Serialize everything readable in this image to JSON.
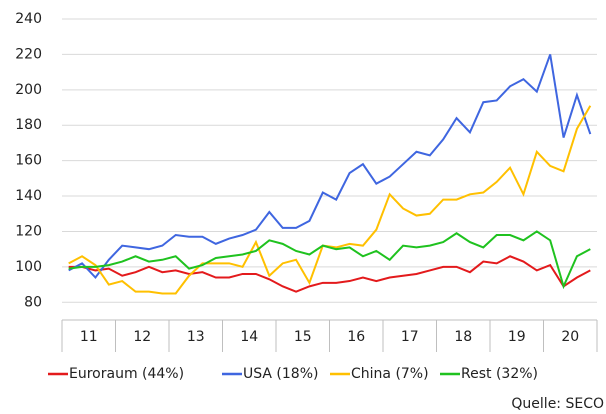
{
  "chart_data": {
    "type": "line",
    "categories": [
      null,
      "11",
      null,
      null,
      null,
      "12",
      null,
      null,
      null,
      "13",
      null,
      null,
      null,
      "14",
      null,
      null,
      null,
      "15",
      null,
      null,
      null,
      "16",
      null,
      null,
      null,
      "17",
      null,
      null,
      null,
      "18",
      null,
      null,
      null,
      "19",
      null,
      null,
      null,
      "20",
      null,
      null
    ],
    "series": [
      {
        "name": "Euroraum (44%)",
        "color": "#e31a1c",
        "values": [
          100,
          100,
          98,
          99,
          95,
          97,
          100,
          97,
          98,
          96,
          97,
          94,
          94,
          96,
          96,
          93,
          89,
          86,
          89,
          91,
          91,
          92,
          94,
          92,
          94,
          95,
          96,
          98,
          100,
          100,
          97,
          103,
          102,
          106,
          103,
          98,
          101,
          89,
          94,
          98
        ]
      },
      {
        "name": "USA (18%)",
        "color": "#3f66e0",
        "values": [
          98,
          102,
          94,
          104,
          112,
          111,
          110,
          112,
          118,
          117,
          117,
          113,
          116,
          118,
          121,
          131,
          122,
          122,
          126,
          142,
          138,
          153,
          158,
          147,
          151,
          158,
          165,
          163,
          172,
          184,
          176,
          193,
          194,
          202,
          206,
          199,
          220,
          173,
          197,
          175
        ]
      },
      {
        "name": "China (7%)",
        "color": "#ffc000",
        "values": [
          102,
          106,
          101,
          90,
          92,
          86,
          86,
          85,
          85,
          95,
          102,
          102,
          102,
          100,
          114,
          95,
          102,
          104,
          91,
          112,
          111,
          113,
          112,
          121,
          141,
          133,
          129,
          130,
          138,
          138,
          141,
          142,
          148,
          156,
          141,
          165,
          157,
          154,
          178,
          191
        ]
      },
      {
        "name": "Rest (32%)",
        "color": "#1fc21f",
        "values": [
          99,
          100,
          100,
          101,
          103,
          106,
          103,
          104,
          106,
          99,
          101,
          105,
          106,
          107,
          109,
          115,
          113,
          109,
          107,
          112,
          110,
          111,
          106,
          109,
          104,
          112,
          111,
          112,
          114,
          119,
          114,
          111,
          118,
          118,
          115,
          120,
          115,
          89,
          106,
          110
        ]
      }
    ],
    "ylim": [
      70,
      240
    ],
    "yticks": [
      80,
      100,
      120,
      140,
      160,
      180,
      200,
      220,
      240
    ],
    "grid": true,
    "source": "Quelle: SECO"
  }
}
